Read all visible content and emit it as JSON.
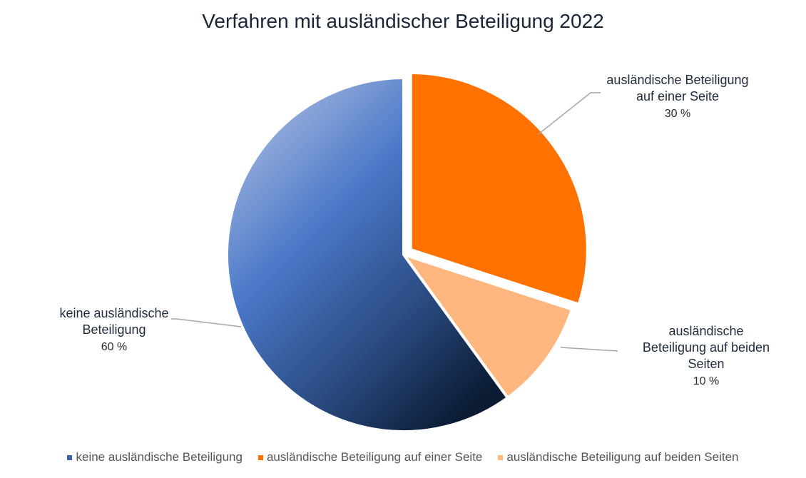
{
  "chart_data": {
    "type": "pie",
    "title": "Verfahren mit ausländischer Beteiligung 2022",
    "slices": [
      {
        "label_lines": [
          "ausländische Beteiligung",
          "auf einer Seite"
        ],
        "legend": "ausländische Beteiligung auf einer Seite",
        "value": 30,
        "value_label": "30 %",
        "color": "#ff7200",
        "exploded": true
      },
      {
        "label_lines": [
          "ausländische",
          "Beteiligung auf beiden",
          "Seiten"
        ],
        "legend": "ausländische Beteiligung auf beiden Seiten",
        "value": 10,
        "value_label": "10 %",
        "color": "#ffb77f",
        "exploded": false
      },
      {
        "label_lines": [
          "keine ausländische",
          "Beteiligung"
        ],
        "legend": "keine ausländische Beteiligung",
        "value": 60,
        "value_label": "60 %",
        "color": "#4a78c8",
        "exploded": false
      }
    ],
    "legend_order": [
      2,
      0,
      1
    ],
    "legend_position": "bottom"
  }
}
